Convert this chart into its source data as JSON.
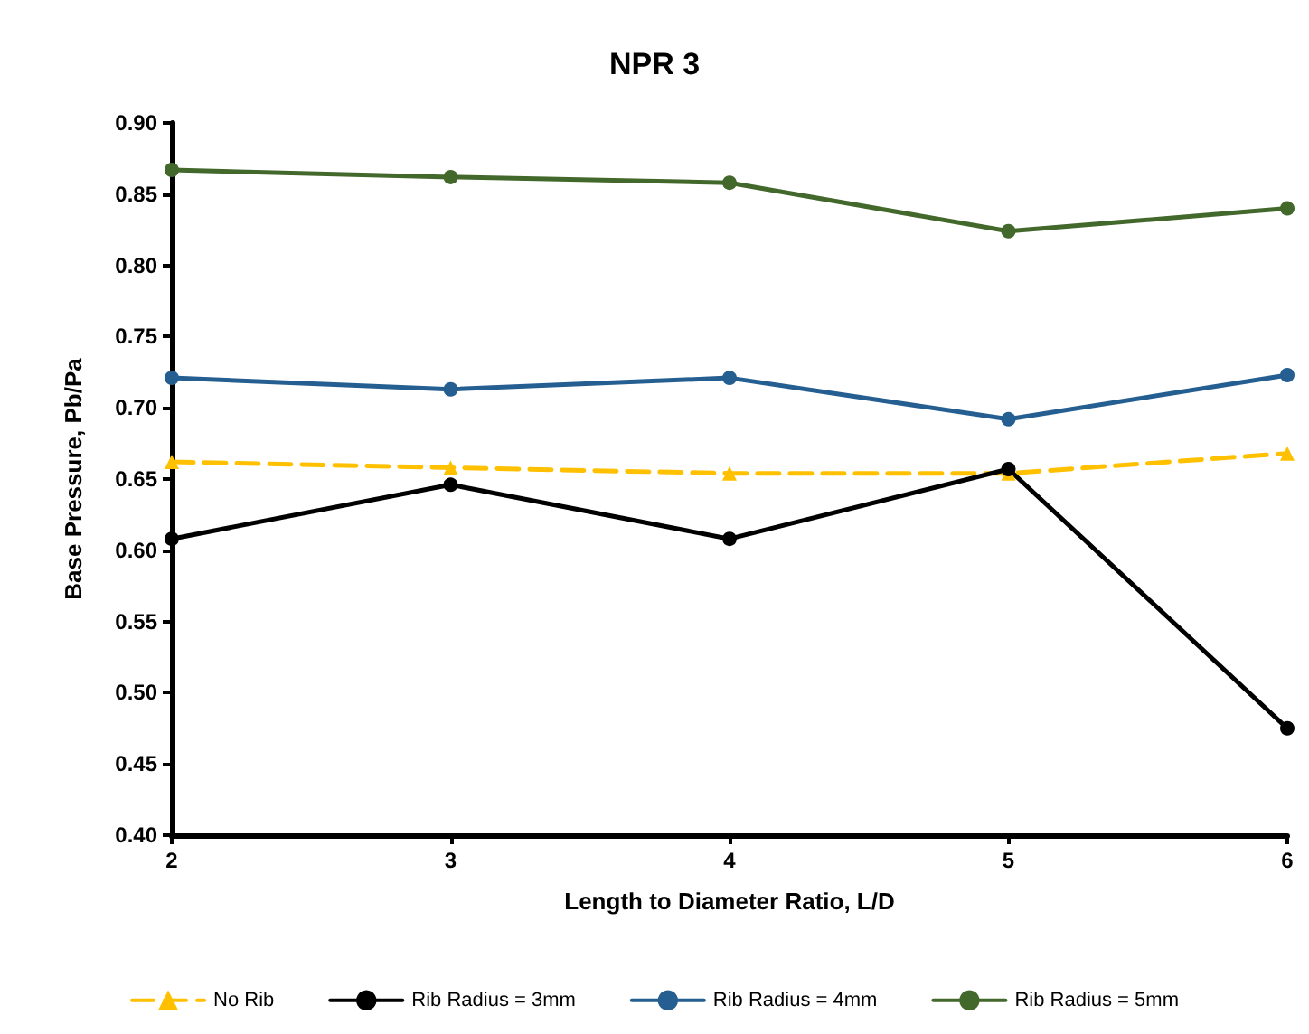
{
  "chart_data": {
    "type": "line",
    "title": "NPR 3",
    "xlabel": "Length to Diameter Ratio, L/D",
    "ylabel": "Base Pressure, Pb/Pa",
    "x": [
      2,
      3,
      4,
      5,
      6
    ],
    "xlim": [
      2,
      6
    ],
    "xticks": [
      2,
      3,
      4,
      5,
      6
    ],
    "ylim": [
      0.4,
      0.9
    ],
    "yticks": [
      {
        "value": 0.4,
        "label": "0.40"
      },
      {
        "value": 0.45,
        "label": "0.45"
      },
      {
        "value": 0.5,
        "label": "0.50"
      },
      {
        "value": 0.55,
        "label": "0.55"
      },
      {
        "value": 0.6,
        "label": "0.60"
      },
      {
        "value": 0.65,
        "label": "0.65"
      },
      {
        "value": 0.7,
        "label": "0.70"
      },
      {
        "value": 0.75,
        "label": "0.75"
      },
      {
        "value": 0.8,
        "label": "0.80"
      },
      {
        "value": 0.85,
        "label": "0.85"
      },
      {
        "value": 0.9,
        "label": "0.90"
      }
    ],
    "grid": false,
    "legend": "bottom",
    "marker": "circle",
    "line_style": "solid",
    "series": [
      {
        "name": "No Rib",
        "color": "#ffc000",
        "values": [
          0.662,
          0.658,
          0.654,
          0.654,
          0.668
        ],
        "marker": "triangle",
        "line_style": "dashed"
      },
      {
        "name": "Rib Radius = 3mm",
        "color": "#000000",
        "values": [
          0.608,
          0.646,
          0.608,
          0.657,
          0.475
        ]
      },
      {
        "name": "Rib Radius = 4mm",
        "color": "#255e91",
        "values": [
          0.721,
          0.713,
          0.721,
          0.692,
          0.723
        ]
      },
      {
        "name": "Rib Radius = 5mm",
        "color": "#43682b",
        "values": [
          0.867,
          0.862,
          0.858,
          0.824,
          0.84
        ]
      }
    ]
  }
}
